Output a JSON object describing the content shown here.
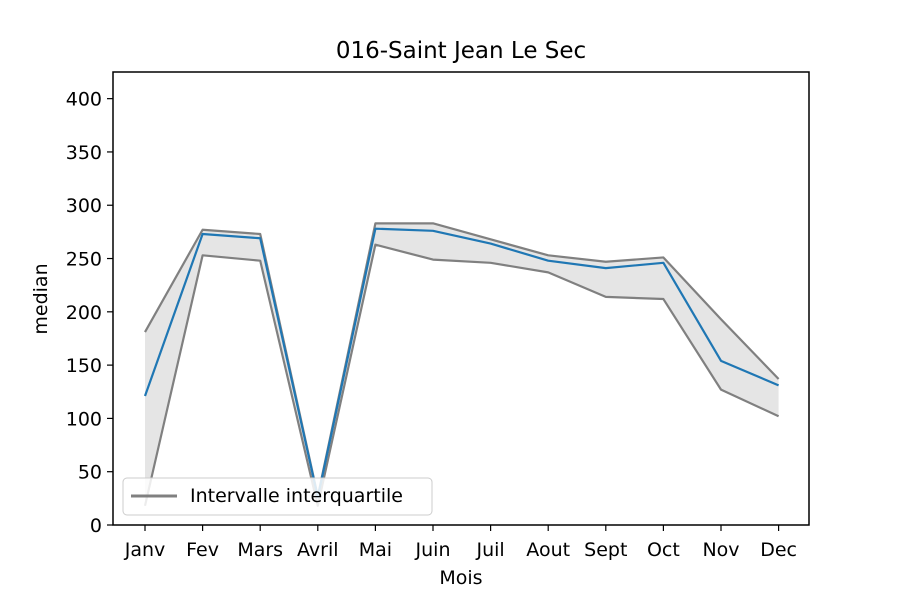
{
  "chart_data": {
    "type": "line",
    "title": "016-Saint Jean Le Sec",
    "xlabel": "Mois",
    "ylabel": "median",
    "categories": [
      "Janv",
      "Fev",
      "Mars",
      "Avril",
      "Mai",
      "Juin",
      "Juil",
      "Aout",
      "Sept",
      "Oct",
      "Nov",
      "Dec"
    ],
    "ylim": [
      0,
      425
    ],
    "yticks": [
      0,
      50,
      100,
      150,
      200,
      250,
      300,
      350,
      400
    ],
    "series": [
      {
        "role": "median",
        "color": "#1f77b4",
        "values": [
          121,
          273,
          269,
          26,
          278,
          276,
          264,
          248,
          241,
          246,
          154,
          131
        ]
      },
      {
        "role": "q3",
        "color": "#808080",
        "values": [
          181,
          277,
          273,
          27,
          283,
          283,
          268,
          253,
          247,
          251,
          193,
          137
        ]
      },
      {
        "role": "q1",
        "color": "#808080",
        "values": [
          18,
          253,
          248,
          18,
          263,
          249,
          246,
          237,
          214,
          212,
          127,
          102
        ]
      }
    ],
    "band_color": "#e5e5e5",
    "grid": false,
    "legend": {
      "position": "lower-left",
      "entries": [
        {
          "label": "Intervalle interquartile",
          "color": "#808080"
        }
      ]
    }
  }
}
